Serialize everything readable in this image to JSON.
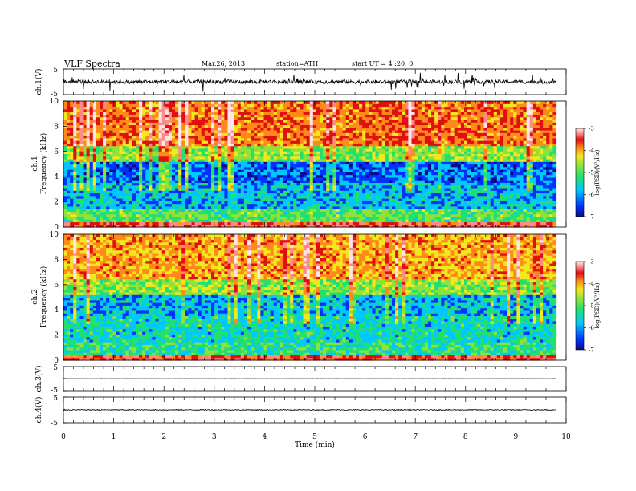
{
  "header": {
    "title": "VLF Spectra",
    "date": "Mar.26, 2013",
    "station": "station=ATH",
    "start": "start UT =  4 :20: 0"
  },
  "colors": {
    "colormap": [
      "#0a0a8c",
      "#0033ff",
      "#00c8ff",
      "#22e070",
      "#8fe23a",
      "#f2e81e",
      "#ff8a1a",
      "#e01010",
      "#ff8a8a",
      "#ffe6e6"
    ],
    "trace": "#000000"
  },
  "chart_data": [
    {
      "type": "line",
      "panel": "ch1-waveform",
      "ylabel": "ch.1(V)",
      "ylim": [
        -5,
        5
      ],
      "ytick_labels": [
        "5",
        "-5"
      ],
      "x_range_min": [
        0,
        9.8
      ],
      "level": 0,
      "spread": 1.5
    },
    {
      "type": "heatmap",
      "panel": "ch1-spectrogram",
      "ylabel": "Frequency (kHz)",
      "ylabel_channel": "ch.1",
      "ylim": [
        0,
        10
      ],
      "yticks": [
        0,
        2,
        4,
        6,
        8,
        10
      ],
      "xlim": [
        0,
        10
      ],
      "data_extent_min": 9.8,
      "colorbar": {
        "label": "log(PSD)(V²/Hz)",
        "range": [
          -7,
          -3
        ],
        "ticks": [
          -3,
          -4,
          -5,
          -6,
          -7
        ],
        "tick_labels": [
          "-3",
          "-4",
          "-5",
          "-6",
          "-7"
        ]
      },
      "log_psd_by_band": [
        {
          "f": [
            0,
            0.5
          ],
          "v": -3.9
        },
        {
          "f": [
            0.5,
            1.5
          ],
          "v": -5.4
        },
        {
          "f": [
            1.5,
            3.5
          ],
          "v": -6.0
        },
        {
          "f": [
            3.5,
            5.2
          ],
          "v": -6.3
        },
        {
          "f": [
            5.2,
            6.5
          ],
          "v": -5.2
        },
        {
          "f": [
            6.5,
            10
          ],
          "v": -4.3
        }
      ]
    },
    {
      "type": "heatmap",
      "panel": "ch2-spectrogram",
      "ylabel": "Frequency (kHz)",
      "ylabel_channel": "ch.2",
      "ylim": [
        0,
        10
      ],
      "yticks": [
        0,
        2,
        4,
        6,
        8,
        10
      ],
      "xlim": [
        0,
        10
      ],
      "data_extent_min": 9.8,
      "colorbar": {
        "label": "log(PSD)(V²/Hz)",
        "range": [
          -7,
          -3
        ],
        "ticks": [
          -3,
          -4,
          -5,
          -6,
          -7
        ],
        "tick_labels": [
          "-3",
          "-4",
          "-5",
          "-6",
          "-7"
        ]
      },
      "log_psd_by_band": [
        {
          "f": [
            0,
            0.5
          ],
          "v": -4.0
        },
        {
          "f": [
            0.5,
            1.5
          ],
          "v": -5.6
        },
        {
          "f": [
            1.5,
            3.5
          ],
          "v": -5.8
        },
        {
          "f": [
            3.5,
            5.2
          ],
          "v": -6.0
        },
        {
          "f": [
            5.2,
            6.5
          ],
          "v": -5.2
        },
        {
          "f": [
            6.5,
            10
          ],
          "v": -4.5
        }
      ]
    },
    {
      "type": "line",
      "panel": "ch3-waveform",
      "ylabel": "ch.3(V)",
      "ylim": [
        -5,
        5
      ],
      "ytick_labels": [
        "5",
        "-5"
      ],
      "x_range_min": [
        0,
        9.8
      ],
      "level": 0,
      "spread": 0.1
    },
    {
      "type": "line",
      "panel": "ch4-waveform",
      "ylabel": "ch.4(V)",
      "ylim": [
        -5,
        5
      ],
      "ytick_labels": [
        "5",
        "-5"
      ],
      "x_range_min": [
        0,
        9.8
      ],
      "level": 0,
      "spread": 0.35
    }
  ],
  "x_axis": {
    "label": "Time (min)",
    "range": [
      0,
      10
    ],
    "ticks": [
      0,
      1,
      2,
      3,
      4,
      5,
      6,
      7,
      8,
      9,
      10
    ],
    "tick_labels": [
      "0",
      "1",
      "2",
      "3",
      "4",
      "5",
      "6",
      "7",
      "8",
      "9",
      "10"
    ]
  }
}
